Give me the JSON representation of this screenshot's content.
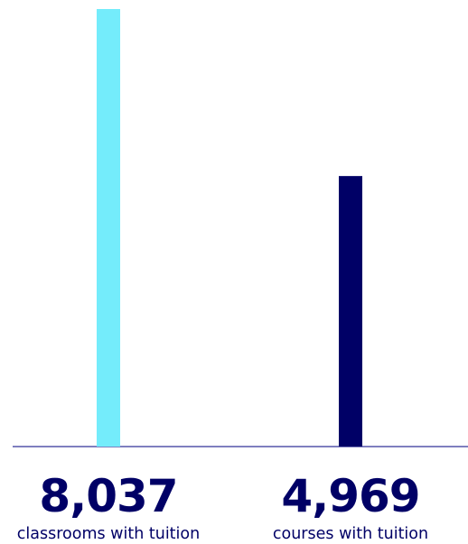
{
  "chart_data": {
    "type": "bar",
    "categories": [
      "classrooms with tuition",
      "courses with tuition"
    ],
    "values": [
      8037,
      4969
    ],
    "value_labels": [
      "8,037",
      "4,969"
    ],
    "ylim": [
      0,
      8037
    ],
    "grid": false,
    "title": "",
    "xlabel": "",
    "ylabel": "",
    "colors": {
      "bars": [
        "#74ecfb",
        "#000066"
      ],
      "value_text": "#000066",
      "category_text": "#000066",
      "baseline": "#333399"
    }
  }
}
